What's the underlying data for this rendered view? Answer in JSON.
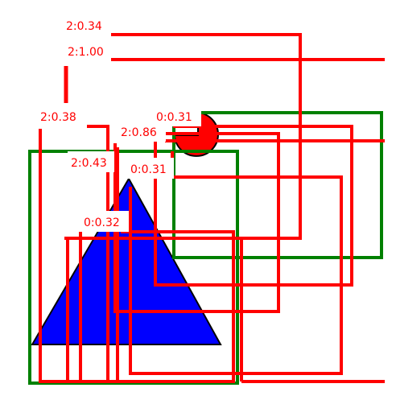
{
  "colors": {
    "background": "#ffffff",
    "triangle_fill": "#0000ff",
    "circle_fill": "#ff0000",
    "outline": "#000000",
    "class_0": "#ff0000",
    "class_1": "#ff0000",
    "class_2": "#ff0000",
    "green_box": "#008000"
  },
  "shapes": {
    "triangle": {
      "name": "blue-triangle"
    },
    "circle": {
      "name": "red-circle-partial"
    }
  },
  "detections": [
    {
      "label": "2:0.34"
    },
    {
      "label": "2:1.00"
    },
    {
      "label": "2:0.38"
    },
    {
      "label": "0:0.31"
    },
    {
      "label": "2:0.86"
    },
    {
      "label": "2:0.43"
    },
    {
      "label": "0:0.31"
    },
    {
      "label": "0:0.32"
    }
  ]
}
